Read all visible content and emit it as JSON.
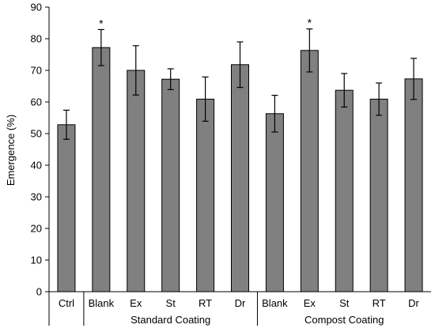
{
  "chart_data": {
    "type": "bar",
    "ylabel": "Emergence (%)",
    "ylim": [
      0,
      90
    ],
    "yticks": [
      0,
      10,
      20,
      30,
      40,
      50,
      60,
      70,
      80,
      90
    ],
    "grid": false,
    "categories": [
      "Ctrl",
      "Blank",
      "Ex",
      "St",
      "RT",
      "Dr",
      "Blank",
      "Ex",
      "St",
      "RT",
      "Dr"
    ],
    "values": [
      52.8,
      77.2,
      70.0,
      67.2,
      60.9,
      71.8,
      56.3,
      76.3,
      63.7,
      60.9,
      67.3
    ],
    "errors": [
      4.6,
      5.7,
      7.8,
      3.3,
      7.0,
      7.2,
      5.8,
      6.8,
      5.3,
      5.1,
      6.5
    ],
    "significance": [
      "",
      "*",
      "",
      "",
      "",
      "",
      "",
      "*",
      "",
      "",
      ""
    ],
    "groups": [
      {
        "label": "",
        "start": 0,
        "end": 0
      },
      {
        "label": "Standard Coating",
        "start": 1,
        "end": 5
      },
      {
        "label": "Compost Coating",
        "start": 6,
        "end": 10
      }
    ],
    "bar_color": "#808080",
    "bar_stroke": "#000000"
  }
}
